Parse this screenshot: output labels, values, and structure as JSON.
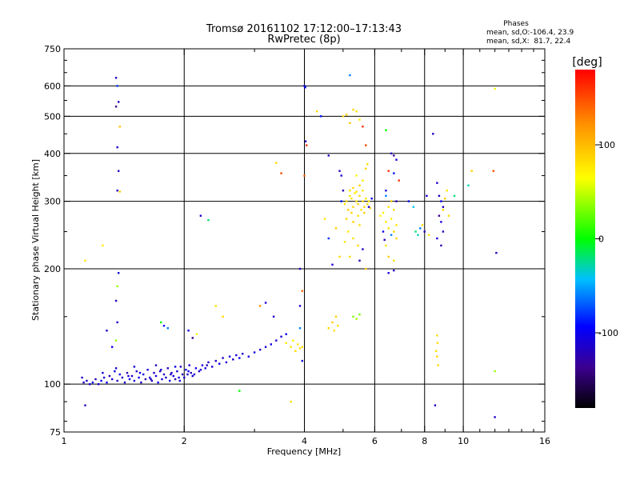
{
  "chart_data": {
    "type": "scatter",
    "title": "Tromsø 20161102 17:12:00–17:13:43",
    "subtitle": "RwPretec (8p)",
    "xlabel": "Frequency [MHz]",
    "ylabel": "Stationary phase Virtual Height [km]",
    "x_scale": "log",
    "y_scale": "log",
    "xlim": [
      1,
      16
    ],
    "ylim": [
      75,
      750
    ],
    "x_ticks": [
      1,
      2,
      4,
      6,
      8,
      10,
      16
    ],
    "x_tick_labels": [
      "1",
      "2",
      "4",
      "6",
      "8",
      "10",
      "16"
    ],
    "y_ticks": [
      75,
      100,
      200,
      300,
      400,
      500,
      600,
      750
    ],
    "y_tick_labels": [
      "75",
      "100",
      "200",
      "300",
      "400",
      "500",
      "600",
      "750"
    ],
    "grid": true,
    "phase_stats": {
      "heading": "Phases",
      "line_o": "mean, sd,O:-106.4, 23.9",
      "line_x": "mean, sd,X:  81.7, 22.4"
    },
    "colorbar": {
      "label": "[deg]",
      "range": [
        -180,
        180
      ],
      "ticks": [
        100,
        0,
        -100
      ],
      "tick_labels": [
        "100",
        "0",
        "-100"
      ]
    },
    "points": [
      [
        1.11,
        104,
        -120
      ],
      [
        1.12,
        101,
        -115
      ],
      [
        1.14,
        102,
        -110
      ],
      [
        1.16,
        100,
        -105
      ],
      [
        1.18,
        101,
        -100
      ],
      [
        1.2,
        103,
        -125
      ],
      [
        1.22,
        100,
        -110
      ],
      [
        1.24,
        102,
        -95
      ],
      [
        1.26,
        104,
        -115
      ],
      [
        1.28,
        101,
        -100
      ],
      [
        1.3,
        105,
        -120
      ],
      [
        1.32,
        103,
        -110
      ],
      [
        1.34,
        108,
        -105
      ],
      [
        1.36,
        102,
        -120
      ],
      [
        1.38,
        106,
        -100
      ],
      [
        1.4,
        104,
        -115
      ],
      [
        1.42,
        101,
        -110
      ],
      [
        1.44,
        107,
        -125
      ],
      [
        1.46,
        103,
        -100
      ],
      [
        1.48,
        105,
        -115
      ],
      [
        1.5,
        102,
        -110
      ],
      [
        1.52,
        108,
        -120
      ],
      [
        1.54,
        104,
        -95
      ],
      [
        1.56,
        101,
        -115
      ],
      [
        1.58,
        106,
        -105
      ],
      [
        1.6,
        103,
        -120
      ],
      [
        1.62,
        109,
        -110
      ],
      [
        1.64,
        104,
        -100
      ],
      [
        1.66,
        102,
        -125
      ],
      [
        1.68,
        107,
        -115
      ],
      [
        1.7,
        105,
        -110
      ],
      [
        1.72,
        101,
        -95
      ],
      [
        1.74,
        108,
        -120
      ],
      [
        1.76,
        103,
        -105
      ],
      [
        1.78,
        106,
        -115
      ],
      [
        1.8,
        104,
        -110
      ],
      [
        1.82,
        110,
        -120
      ],
      [
        1.84,
        102,
        -100
      ],
      [
        1.86,
        107,
        -115
      ],
      [
        1.88,
        105,
        -105
      ],
      [
        1.9,
        103,
        -125
      ],
      [
        1.92,
        108,
        -110
      ],
      [
        1.94,
        104,
        -100
      ],
      [
        1.96,
        111,
        -115
      ],
      [
        1.98,
        106,
        -120
      ],
      [
        2.0,
        104,
        -110
      ],
      [
        2.02,
        109,
        -95
      ],
      [
        2.04,
        106,
        -115
      ],
      [
        2.06,
        112,
        -105
      ],
      [
        2.08,
        107,
        -120
      ],
      [
        2.1,
        105,
        -110
      ],
      [
        2.14,
        110,
        -100
      ],
      [
        2.18,
        108,
        -115
      ],
      [
        2.22,
        112,
        -110
      ],
      [
        2.26,
        110,
        -105
      ],
      [
        2.3,
        114,
        -115
      ],
      [
        2.35,
        111,
        -110
      ],
      [
        2.4,
        115,
        -120
      ],
      [
        2.45,
        113,
        -100
      ],
      [
        2.5,
        117,
        -115
      ],
      [
        2.55,
        114,
        -110
      ],
      [
        2.6,
        118,
        -105
      ],
      [
        2.65,
        116,
        -115
      ],
      [
        2.7,
        119,
        -110
      ],
      [
        2.75,
        117,
        -100
      ],
      [
        2.8,
        120,
        -115
      ],
      [
        2.9,
        118,
        -110
      ],
      [
        3.0,
        121,
        -105
      ],
      [
        3.1,
        123,
        -115
      ],
      [
        3.2,
        125,
        -110
      ],
      [
        3.3,
        127,
        -100
      ],
      [
        3.4,
        130,
        -115
      ],
      [
        3.5,
        133,
        -110
      ],
      [
        3.6,
        135,
        -105
      ],
      [
        1.45,
        105,
        -110
      ],
      [
        1.55,
        107,
        -105
      ],
      [
        1.65,
        103,
        -115
      ],
      [
        1.75,
        109,
        -110
      ],
      [
        1.85,
        106,
        -120
      ],
      [
        1.95,
        102,
        -110
      ],
      [
        2.05,
        108,
        -100
      ],
      [
        2.12,
        106,
        -115
      ],
      [
        2.2,
        109,
        -110
      ],
      [
        2.28,
        112,
        -120
      ],
      [
        1.25,
        107,
        -105
      ],
      [
        1.35,
        110,
        -115
      ],
      [
        1.5,
        111,
        -110
      ],
      [
        1.7,
        112,
        -120
      ],
      [
        1.9,
        111,
        -105
      ],
      [
        3.6,
        128,
        75
      ],
      [
        3.7,
        125,
        80
      ],
      [
        3.75,
        130,
        70
      ],
      [
        3.8,
        122,
        85
      ],
      [
        3.85,
        127,
        78
      ],
      [
        3.9,
        124,
        82
      ],
      [
        4.6,
        140,
        85
      ],
      [
        4.7,
        145,
        90
      ],
      [
        4.75,
        138,
        80
      ],
      [
        4.8,
        150,
        88
      ],
      [
        4.85,
        142,
        84
      ],
      [
        5.3,
        150,
        35
      ],
      [
        5.5,
        152,
        30
      ],
      [
        5.4,
        148,
        40
      ],
      [
        1.35,
        630,
        -120
      ],
      [
        1.36,
        600,
        -80
      ],
      [
        1.37,
        545,
        -115
      ],
      [
        1.35,
        530,
        -140
      ],
      [
        1.38,
        470,
        95
      ],
      [
        1.36,
        415,
        -110
      ],
      [
        1.37,
        360,
        -120
      ],
      [
        1.36,
        320,
        -115
      ],
      [
        1.38,
        318,
        90
      ],
      [
        1.37,
        195,
        -110
      ],
      [
        1.36,
        180,
        40
      ],
      [
        1.35,
        165,
        -115
      ],
      [
        1.36,
        145,
        -110
      ],
      [
        1.35,
        130,
        40
      ],
      [
        1.25,
        230,
        75
      ],
      [
        1.13,
        210,
        80
      ],
      [
        1.13,
        88,
        -120
      ],
      [
        1.28,
        138,
        -110
      ],
      [
        1.32,
        125,
        -100
      ],
      [
        1.75,
        145,
        0
      ],
      [
        1.78,
        142,
        -90
      ],
      [
        1.82,
        140,
        -60
      ],
      [
        2.05,
        138,
        -105
      ],
      [
        2.1,
        132,
        -140
      ],
      [
        2.15,
        135,
        60
      ],
      [
        2.2,
        275,
        -110
      ],
      [
        2.3,
        268,
        -20
      ],
      [
        2.4,
        160,
        80
      ],
      [
        2.5,
        150,
        85
      ],
      [
        2.75,
        96,
        0
      ],
      [
        3.1,
        160,
        120
      ],
      [
        3.2,
        163,
        -110
      ],
      [
        3.35,
        150,
        -115
      ],
      [
        3.4,
        378,
        85
      ],
      [
        3.5,
        355,
        150
      ],
      [
        3.7,
        90,
        85
      ],
      [
        3.95,
        115,
        -110
      ],
      [
        3.9,
        140,
        -60
      ],
      [
        3.9,
        160,
        -110
      ],
      [
        3.95,
        175,
        140
      ],
      [
        3.9,
        200,
        -120
      ],
      [
        3.95,
        125,
        80
      ],
      [
        4.0,
        600,
        -110
      ],
      [
        4.02,
        595,
        -90
      ],
      [
        4.03,
        430,
        -120
      ],
      [
        4.05,
        420,
        160
      ],
      [
        4.0,
        350,
        140
      ],
      [
        4.3,
        515,
        85
      ],
      [
        4.4,
        500,
        -90
      ],
      [
        4.6,
        395,
        -120
      ],
      [
        4.9,
        360,
        -120
      ],
      [
        4.95,
        350,
        -105
      ],
      [
        4.5,
        270,
        80
      ],
      [
        4.6,
        240,
        -80
      ],
      [
        4.7,
        205,
        -110
      ],
      [
        4.8,
        255,
        90
      ],
      [
        4.9,
        215,
        85
      ],
      [
        5.0,
        500,
        85
      ],
      [
        5.1,
        505,
        90
      ],
      [
        5.2,
        480,
        95
      ],
      [
        5.3,
        520,
        85
      ],
      [
        5.4,
        515,
        80
      ],
      [
        5.5,
        490,
        75
      ],
      [
        5.2,
        640,
        -60
      ],
      [
        5.6,
        470,
        160
      ],
      [
        5.7,
        420,
        150
      ],
      [
        5.05,
        295,
        80
      ],
      [
        5.1,
        300,
        85
      ],
      [
        5.15,
        285,
        90
      ],
      [
        5.2,
        310,
        78
      ],
      [
        5.25,
        305,
        82
      ],
      [
        5.3,
        290,
        88
      ],
      [
        5.35,
        315,
        75
      ],
      [
        5.4,
        300,
        80
      ],
      [
        5.45,
        295,
        90
      ],
      [
        5.5,
        310,
        85
      ],
      [
        5.55,
        285,
        78
      ],
      [
        5.6,
        300,
        82
      ],
      [
        5.65,
        290,
        88
      ],
      [
        5.7,
        305,
        80
      ],
      [
        5.75,
        295,
        85
      ],
      [
        5.8,
        300,
        75
      ],
      [
        5.85,
        288,
        90
      ],
      [
        5.2,
        320,
        82
      ],
      [
        5.3,
        325,
        85
      ],
      [
        5.4,
        318,
        80
      ],
      [
        5.5,
        330,
        88
      ],
      [
        5.6,
        320,
        78
      ],
      [
        5.25,
        280,
        85
      ],
      [
        5.45,
        275,
        80
      ],
      [
        5.65,
        280,
        90
      ],
      [
        5.4,
        350,
        70
      ],
      [
        5.6,
        340,
        75
      ],
      [
        5.7,
        365,
        85
      ],
      [
        5.75,
        375,
        80
      ],
      [
        5.5,
        260,
        82
      ],
      [
        5.3,
        265,
        90
      ],
      [
        5.1,
        270,
        85
      ],
      [
        5.0,
        320,
        -120
      ],
      [
        4.95,
        300,
        -90
      ],
      [
        5.15,
        250,
        75
      ],
      [
        5.3,
        240,
        80
      ],
      [
        5.45,
        230,
        85
      ],
      [
        5.6,
        225,
        -110
      ],
      [
        5.5,
        210,
        -120
      ],
      [
        5.7,
        200,
        88
      ],
      [
        5.2,
        215,
        82
      ],
      [
        5.05,
        235,
        80
      ],
      [
        5.8,
        290,
        -110
      ],
      [
        5.9,
        305,
        -100
      ],
      [
        6.2,
        275,
        70
      ],
      [
        6.3,
        280,
        75
      ],
      [
        6.4,
        265,
        78
      ],
      [
        6.5,
        290,
        80
      ],
      [
        6.6,
        270,
        72
      ],
      [
        6.7,
        285,
        85
      ],
      [
        6.5,
        255,
        82
      ],
      [
        6.7,
        250,
        88
      ],
      [
        6.8,
        260,
        76
      ],
      [
        6.4,
        230,
        80
      ],
      [
        6.6,
        245,
        -60
      ],
      [
        6.8,
        240,
        84
      ],
      [
        6.5,
        215,
        90
      ],
      [
        6.7,
        210,
        80
      ],
      [
        6.4,
        460,
        0
      ],
      [
        6.6,
        400,
        -120
      ],
      [
        6.7,
        395,
        -130
      ],
      [
        6.8,
        385,
        -110
      ],
      [
        6.5,
        360,
        160
      ],
      [
        6.7,
        355,
        -90
      ],
      [
        6.9,
        340,
        160
      ],
      [
        6.4,
        310,
        -60
      ],
      [
        6.8,
        300,
        -120
      ],
      [
        6.5,
        195,
        -110
      ],
      [
        6.7,
        198,
        -120
      ],
      [
        6.4,
        320,
        -110
      ],
      [
        6.6,
        300,
        90
      ],
      [
        6.3,
        250,
        -100
      ],
      [
        6.35,
        238,
        -120
      ],
      [
        7.3,
        300,
        -100
      ],
      [
        7.5,
        290,
        -40
      ],
      [
        7.6,
        250,
        -20
      ],
      [
        7.7,
        245,
        -30
      ],
      [
        7.8,
        255,
        -60
      ],
      [
        7.9,
        260,
        80
      ],
      [
        8.0,
        250,
        -120
      ],
      [
        8.1,
        310,
        -110
      ],
      [
        8.2,
        245,
        80
      ],
      [
        8.4,
        450,
        -120
      ],
      [
        8.6,
        335,
        -110
      ],
      [
        8.7,
        310,
        -120
      ],
      [
        8.8,
        300,
        -100
      ],
      [
        8.9,
        290,
        -120
      ],
      [
        8.7,
        275,
        -140
      ],
      [
        8.8,
        265,
        -110
      ],
      [
        8.9,
        250,
        -120
      ],
      [
        8.6,
        240,
        -110
      ],
      [
        8.8,
        230,
        -130
      ],
      [
        9.1,
        320,
        80
      ],
      [
        9.0,
        305,
        90
      ],
      [
        8.9,
        285,
        85
      ],
      [
        9.2,
        275,
        82
      ],
      [
        8.6,
        134,
        85
      ],
      [
        8.62,
        128,
        82
      ],
      [
        8.55,
        122,
        80
      ],
      [
        8.6,
        118,
        88
      ],
      [
        8.65,
        112,
        85
      ],
      [
        8.5,
        88,
        -120
      ],
      [
        9.5,
        310,
        -20
      ],
      [
        10.3,
        330,
        -30
      ],
      [
        10.5,
        360,
        90
      ],
      [
        12.0,
        590,
        60
      ],
      [
        11.9,
        360,
        150
      ],
      [
        12.1,
        220,
        -120
      ],
      [
        12.0,
        108,
        40
      ],
      [
        12.0,
        82,
        -110
      ]
    ]
  }
}
